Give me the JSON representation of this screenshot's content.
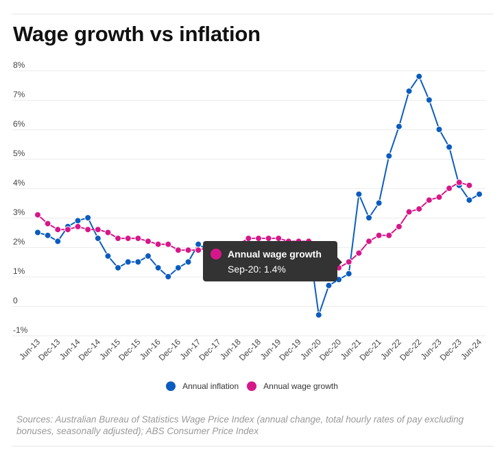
{
  "title": "Wage growth vs inflation",
  "colors": {
    "inflation": "#0a5cbf",
    "wage": "#d6178a",
    "grid": "#ececec",
    "axis_text": "#444444",
    "tooltip_bg": "#333333"
  },
  "legend": {
    "items": [
      {
        "label": "Annual inflation",
        "color": "#0a5cbf"
      },
      {
        "label": "Annual wage growth",
        "color": "#d6178a"
      }
    ]
  },
  "tooltip": {
    "series": "Annual wage growth",
    "value_text": "Sep-20: 1.4%",
    "color": "#d6178a",
    "point_index": 29
  },
  "source": "Sources: Australian Bureau of Statistics Wage Price Index (annual change, total hourly rates of pay excluding bonuses, seasonally adjusted); ABS Consumer Price Index",
  "chart_data": {
    "type": "line",
    "title": "Wage growth vs inflation",
    "xlabel": "",
    "ylabel": "",
    "ylim": [
      -1,
      8
    ],
    "grid": true,
    "legend_position": "bottom",
    "y_ticks": [
      {
        "value": 8,
        "label": "8%"
      },
      {
        "value": 7,
        "label": "7%"
      },
      {
        "value": 6,
        "label": "6%"
      },
      {
        "value": 5,
        "label": "5%"
      },
      {
        "value": 4,
        "label": "4%"
      },
      {
        "value": 3,
        "label": "3%"
      },
      {
        "value": 2,
        "label": "2%"
      },
      {
        "value": 1,
        "label": "1%"
      },
      {
        "value": 0,
        "label": "0"
      },
      {
        "value": -1,
        "label": "-1%"
      }
    ],
    "x": [
      "Jun-13",
      "Sep-13",
      "Dec-13",
      "Mar-14",
      "Jun-14",
      "Sep-14",
      "Dec-14",
      "Mar-15",
      "Jun-15",
      "Sep-15",
      "Dec-15",
      "Mar-16",
      "Jun-16",
      "Sep-16",
      "Dec-16",
      "Mar-17",
      "Jun-17",
      "Sep-17",
      "Dec-17",
      "Mar-18",
      "Jun-18",
      "Sep-18",
      "Dec-18",
      "Mar-19",
      "Jun-19",
      "Sep-19",
      "Dec-19",
      "Mar-20",
      "Jun-20",
      "Sep-20",
      "Dec-20",
      "Mar-21",
      "Jun-21",
      "Sep-21",
      "Dec-21",
      "Mar-22",
      "Jun-22",
      "Sep-22",
      "Dec-22",
      "Mar-23",
      "Jun-23",
      "Sep-23",
      "Dec-23",
      "Mar-24",
      "Jun-24"
    ],
    "x_tick_labels": [
      "Jun-13",
      "Dec-13",
      "Jun-14",
      "Dec-14",
      "Jun-15",
      "Dec-15",
      "Jun-16",
      "Dec-16",
      "Jun-17",
      "Dec-17",
      "Jun-18",
      "Dec-18",
      "Jun-19",
      "Dec-19",
      "Jun-20",
      "Dec-20",
      "Jun-21",
      "Dec-21",
      "Jun-22",
      "Dec-22",
      "Jun-23",
      "Dec-23",
      "Jun-24"
    ],
    "series": [
      {
        "name": "Annual inflation",
        "color": "#0a5cbf",
        "values": [
          2.5,
          2.4,
          2.2,
          2.7,
          2.9,
          3.0,
          2.3,
          1.7,
          1.3,
          1.5,
          1.5,
          1.7,
          1.3,
          1.0,
          1.3,
          1.5,
          2.1,
          1.9,
          1.9,
          1.9,
          2.1,
          1.9,
          1.8,
          1.3,
          1.6,
          1.7,
          1.8,
          2.2,
          -0.3,
          0.7,
          0.9,
          1.1,
          3.8,
          3.0,
          3.5,
          5.1,
          6.1,
          7.3,
          7.8,
          7.0,
          6.0,
          5.4,
          4.1,
          3.6,
          3.8
        ]
      },
      {
        "name": "Annual wage growth",
        "color": "#d6178a",
        "values": [
          3.1,
          2.8,
          2.6,
          2.6,
          2.7,
          2.6,
          2.6,
          2.5,
          2.3,
          2.3,
          2.3,
          2.2,
          2.1,
          2.1,
          1.9,
          1.9,
          1.9,
          2.0,
          2.0,
          2.1,
          2.1,
          2.3,
          2.3,
          2.3,
          2.3,
          2.2,
          2.2,
          2.2,
          1.8,
          1.4,
          1.3,
          1.5,
          1.8,
          2.2,
          2.4,
          2.4,
          2.7,
          3.2,
          3.3,
          3.6,
          3.7,
          4.0,
          4.2,
          4.1,
          null
        ]
      }
    ]
  }
}
